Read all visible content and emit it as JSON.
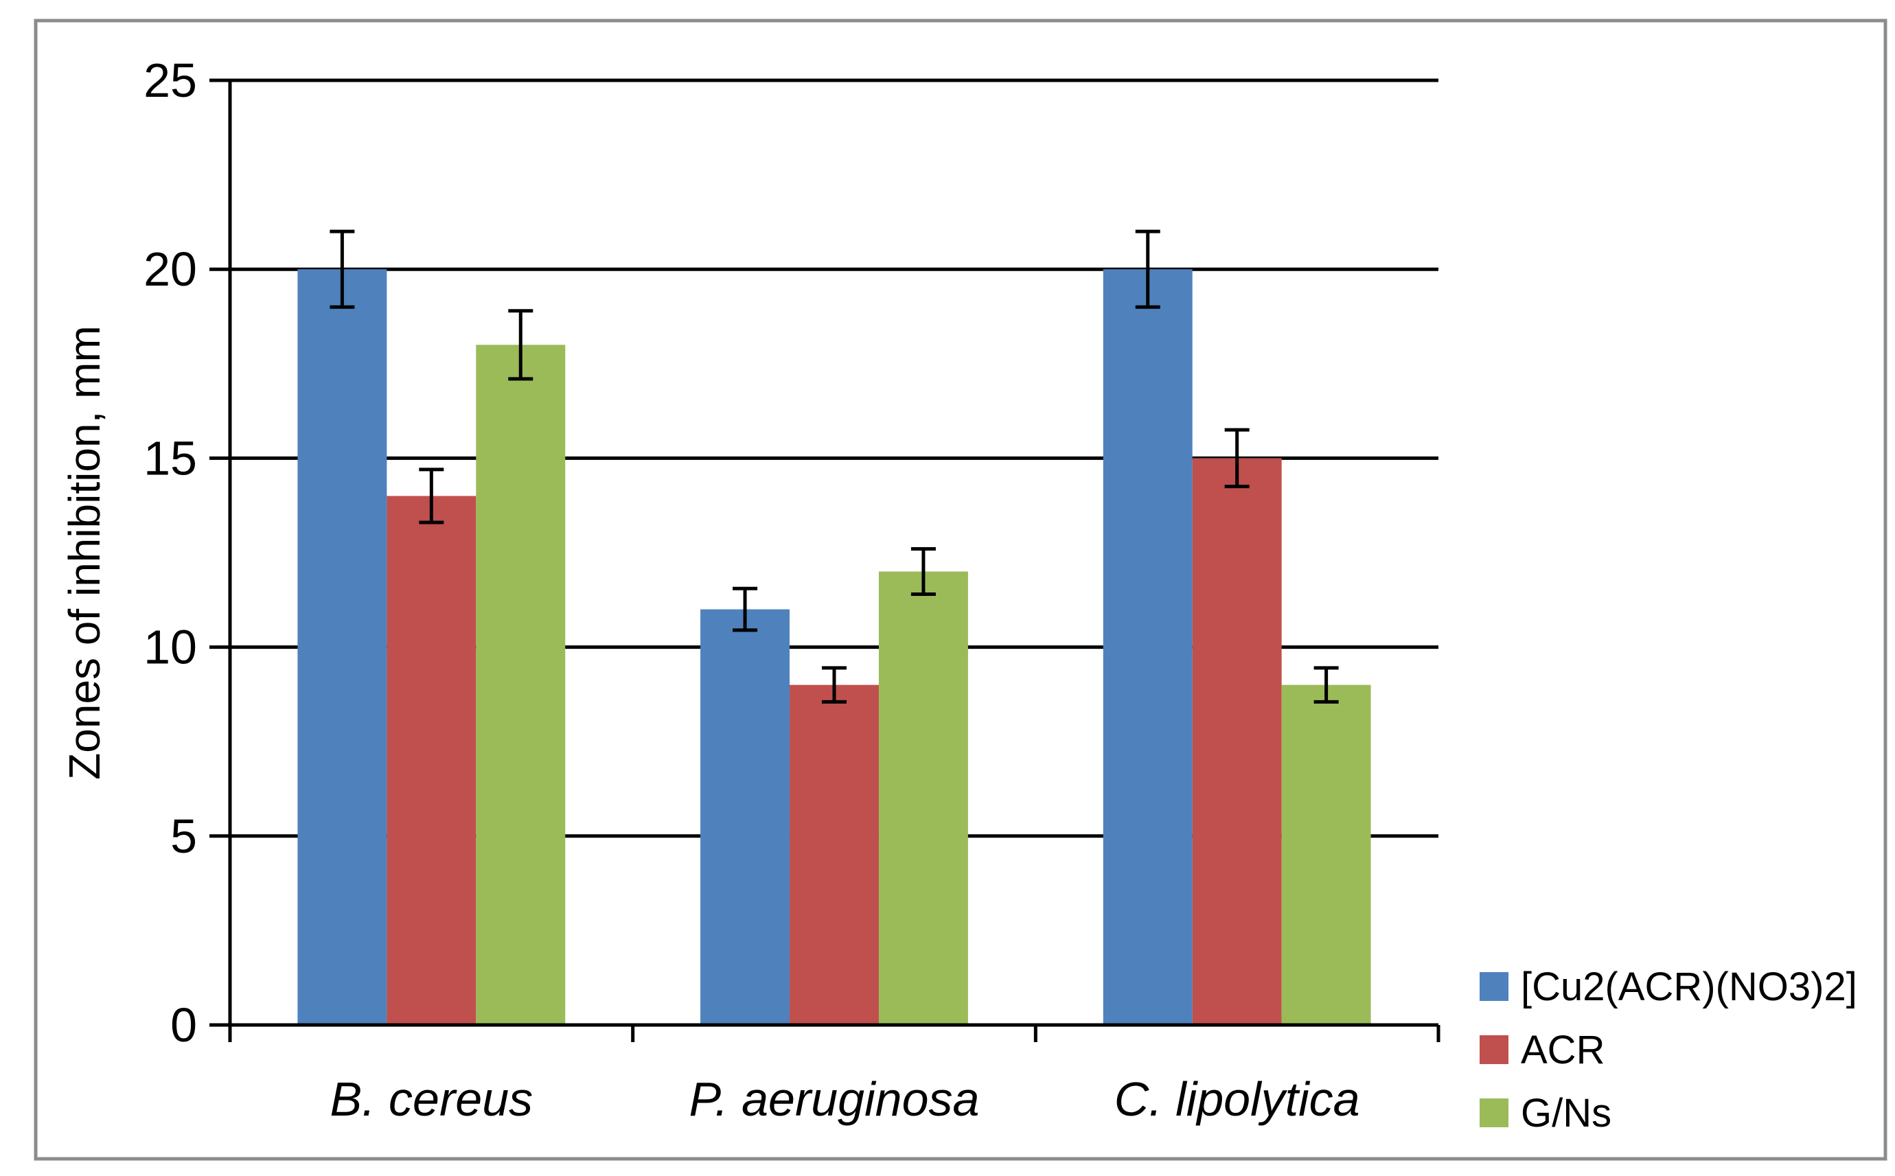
{
  "chart_data": {
    "type": "bar",
    "title": "",
    "xlabel": "",
    "ylabel": "Zones of inhibition, mm",
    "ylim": [
      0,
      25
    ],
    "yticks": [
      0,
      5,
      10,
      15,
      20,
      25
    ],
    "ytick_labels": [
      "0",
      "5",
      "10",
      "15",
      "20",
      "25"
    ],
    "grid": true,
    "legend_position": "bottom-right",
    "categories": [
      "B. cereus",
      "P. aeruginosa",
      "C. lipolytica"
    ],
    "series": [
      {
        "name": "[Cu2(ACR)(NO3)2]",
        "color": "#4F81BD",
        "values": [
          20,
          11,
          20
        ],
        "errors": [
          1,
          0.55,
          1
        ]
      },
      {
        "name": "ACR",
        "color": "#C0504D",
        "values": [
          14,
          9,
          15
        ],
        "errors": [
          0.7,
          0.45,
          0.75
        ]
      },
      {
        "name": "G/Ns",
        "color": "#9BBB59",
        "values": [
          18,
          12,
          9
        ],
        "errors": [
          0.9,
          0.6,
          0.45
        ]
      }
    ]
  }
}
